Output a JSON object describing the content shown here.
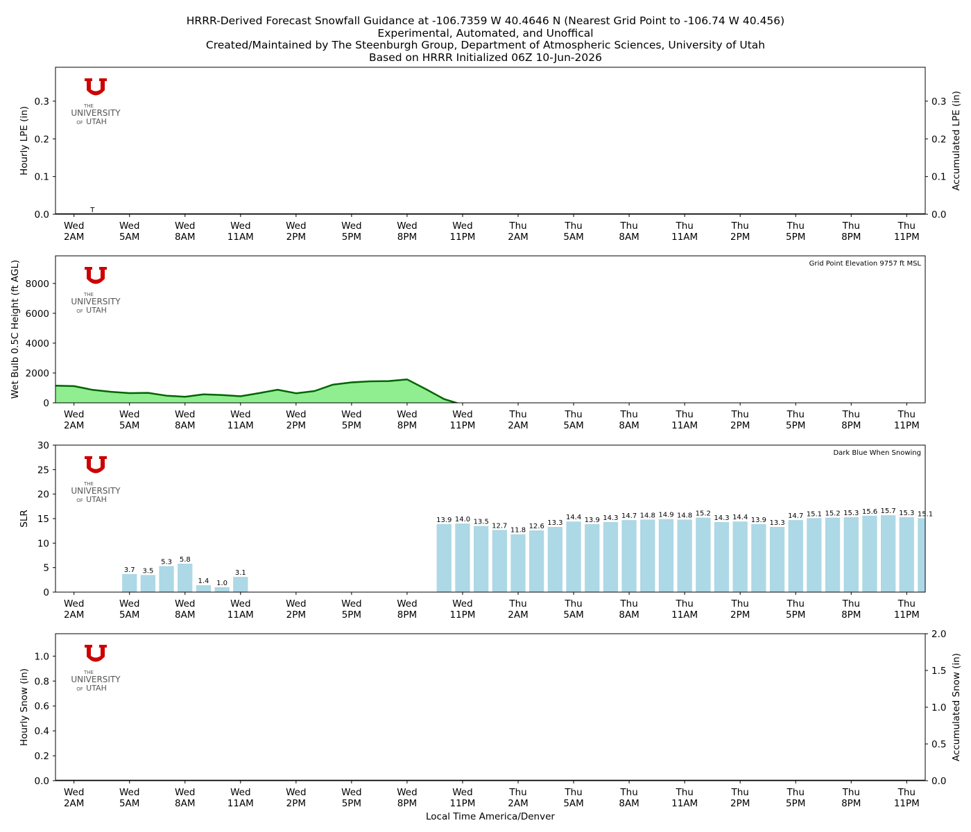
{
  "header": {
    "lines": [
      "HRRR-Derived Forecast Snowfall Guidance at -106.7359 W 40.4646 N (Nearest Grid Point to -106.74 W 40.456)",
      "Experimental, Automated, and Unoffical",
      "Created/Maintained by The Steenburgh Group, Department of Atmospheric Sciences, University of Utah",
      "Based on HRRR Initialized 06Z 10-Jun-2026"
    ]
  },
  "logo": {
    "small_text_1": "THE",
    "main_text": "UNIVERSITY",
    "small_text_2": "OF",
    "main_text_2": "UTAH",
    "color": "#cc0000"
  },
  "colors": {
    "bar_light": "#add8e6",
    "area_fill": "#90ee90",
    "area_line": "#006400",
    "axis": "#000000"
  },
  "x_axis": {
    "hour_range": [
      -1,
      46
    ],
    "tick_hours": [
      0,
      3,
      6,
      9,
      12,
      15,
      18,
      21,
      24,
      27,
      30,
      33,
      36,
      39,
      42,
      45
    ],
    "tick_labels": [
      [
        "Wed",
        "2AM"
      ],
      [
        "Wed",
        "5AM"
      ],
      [
        "Wed",
        "8AM"
      ],
      [
        "Wed",
        "11AM"
      ],
      [
        "Wed",
        "2PM"
      ],
      [
        "Wed",
        "5PM"
      ],
      [
        "Wed",
        "8PM"
      ],
      [
        "Wed",
        "11PM"
      ],
      [
        "Thu",
        "2AM"
      ],
      [
        "Thu",
        "5AM"
      ],
      [
        "Thu",
        "8AM"
      ],
      [
        "Thu",
        "11AM"
      ],
      [
        "Thu",
        "2PM"
      ],
      [
        "Thu",
        "5PM"
      ],
      [
        "Thu",
        "8PM"
      ],
      [
        "Thu",
        "11PM"
      ]
    ],
    "xlabel": "Local Time America/Denver"
  },
  "chart_data": [
    {
      "type": "bar",
      "ylabel": "Hourly LPE (in)",
      "ylabel_right": "Accumulated LPE (in)",
      "ylim": [
        0,
        0.39
      ],
      "yticks": [
        0.0,
        0.1,
        0.2,
        0.3
      ],
      "ytick_labels": [
        "0.0",
        "0.1",
        "0.2",
        "0.3"
      ],
      "right_ylim": [
        0,
        0.39
      ],
      "right_yticks": [
        0.0,
        0.1,
        0.2,
        0.3
      ],
      "right_ytick_labels": [
        "0.0",
        "0.1",
        "0.2",
        "0.3"
      ],
      "accumulated_line": {
        "x": [
          -1,
          46
        ],
        "y": [
          0,
          0
        ]
      },
      "annotations": [
        {
          "x": 1,
          "y": 0,
          "text": "T"
        }
      ]
    },
    {
      "type": "area",
      "ylabel": "Wet Bulb 0.5C Height (ft AGL)",
      "ylim": [
        0,
        9850
      ],
      "yticks": [
        0,
        2000,
        4000,
        6000,
        8000
      ],
      "ytick_labels": [
        "0",
        "2000",
        "4000",
        "6000",
        "8000"
      ],
      "note": "Grid Point Elevation 9757 ft MSL",
      "x": [
        -1,
        0,
        1,
        2,
        3,
        4,
        5,
        6,
        7,
        8,
        9,
        10,
        11,
        12,
        13,
        14,
        15,
        16,
        17,
        18,
        19,
        20,
        21
      ],
      "values": [
        1150,
        1120,
        870,
        740,
        650,
        670,
        480,
        410,
        570,
        520,
        440,
        650,
        880,
        640,
        790,
        1220,
        1370,
        1440,
        1460,
        1570,
        930,
        250,
        -130
      ]
    },
    {
      "type": "bar",
      "ylabel": "SLR",
      "ylim": [
        0,
        30
      ],
      "yticks": [
        0,
        5,
        10,
        15,
        20,
        25,
        30
      ],
      "ytick_labels": [
        "0",
        "5",
        "10",
        "15",
        "20",
        "25",
        "30"
      ],
      "note": "Dark Blue When Snowing",
      "x": [
        3,
        4,
        5,
        6,
        7,
        8,
        9,
        20,
        21,
        22,
        23,
        24,
        25,
        26,
        27,
        28,
        29,
        30,
        31,
        32,
        33,
        34,
        35,
        36,
        37,
        38,
        39,
        40,
        41,
        42,
        43,
        44,
        45,
        46
      ],
      "values": [
        3.7,
        3.5,
        5.3,
        5.8,
        1.4,
        1.0,
        3.1,
        13.9,
        14.0,
        13.5,
        12.7,
        11.8,
        12.6,
        13.3,
        14.4,
        13.9,
        14.3,
        14.7,
        14.8,
        14.9,
        14.8,
        15.2,
        14.3,
        14.4,
        13.9,
        13.3,
        14.7,
        15.1,
        15.2,
        15.3,
        15.6,
        15.7,
        15.3,
        15.1
      ],
      "labels": [
        "3.7",
        "3.5",
        "5.3",
        "5.8",
        "1.4",
        "1.0",
        "3.1",
        "13.9",
        "14.0",
        "13.5",
        "12.7",
        "11.8",
        "12.6",
        "13.3",
        "14.4",
        "13.9",
        "14.3",
        "14.7",
        "14.8",
        "14.9",
        "14.8",
        "15.2",
        "14.3",
        "14.4",
        "13.9",
        "13.3",
        "14.7",
        "15.1",
        "15.2",
        "15.3",
        "15.6",
        "15.7",
        "15.3",
        "15.1"
      ]
    },
    {
      "type": "bar",
      "ylabel": "Hourly Snow (in)",
      "ylabel_right": "Accumulated Snow (in)",
      "xlabel": "Local Time America/Denver",
      "ylim": [
        0,
        1.18
      ],
      "yticks": [
        0.0,
        0.2,
        0.4,
        0.6,
        0.8,
        1.0
      ],
      "ytick_labels": [
        "0.0",
        "0.2",
        "0.4",
        "0.6",
        "0.8",
        "1.0"
      ],
      "right_ylim": [
        0,
        2.0
      ],
      "right_yticks": [
        0.0,
        0.5,
        1.0,
        1.5,
        2.0
      ],
      "right_ytick_labels": [
        "0.0",
        "0.5",
        "1.0",
        "1.5",
        "2.0"
      ],
      "accumulated_line": {
        "x": [
          -1,
          46
        ],
        "y": [
          0,
          0
        ]
      }
    }
  ]
}
